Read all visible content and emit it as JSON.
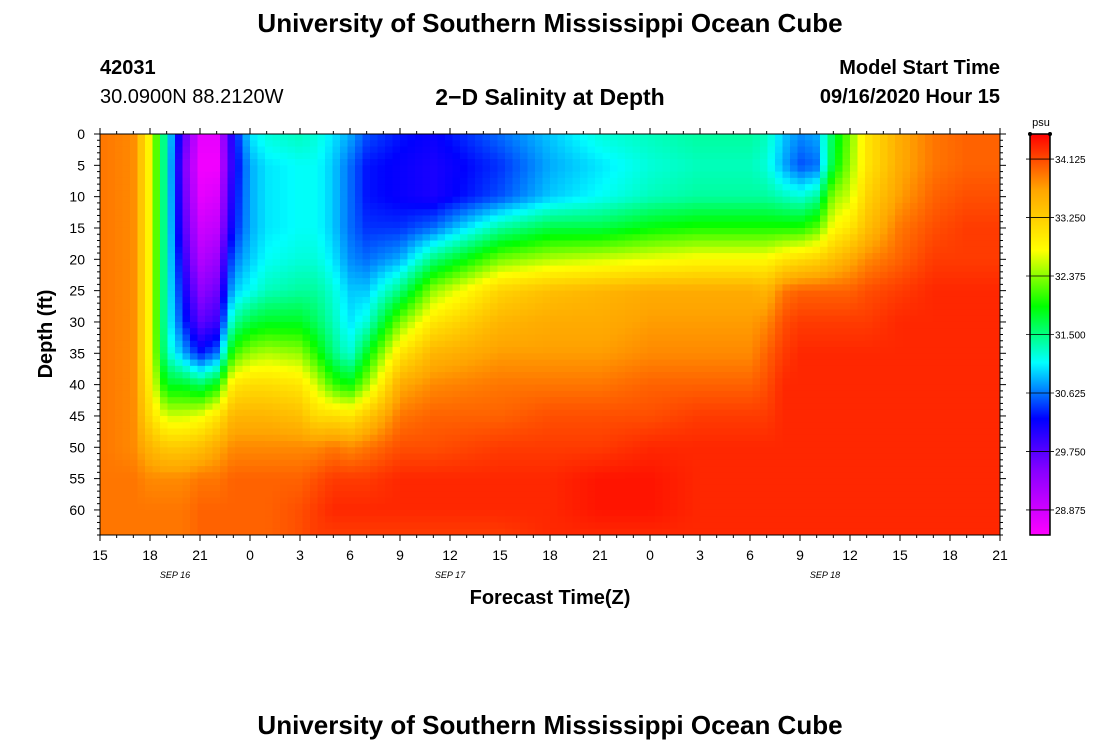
{
  "page": {
    "title_top": "University of Southern Mississippi Ocean Cube",
    "title_bottom": "University of Southern Mississippi Ocean Cube",
    "station_id": "42031",
    "location": "30.0900N 88.2120W",
    "plot_title": "2−D Salinity at Depth",
    "model_start_label": "Model Start Time",
    "model_start_value": "09/16/2020 Hour 15"
  },
  "chart_data": {
    "type": "heatmap",
    "title": "2−D Salinity at Depth",
    "xlabel": "Forecast Time(Z)",
    "ylabel": "Depth (ft)",
    "x_tick_labels": [
      "15",
      "18",
      "21",
      "0",
      "3",
      "6",
      "9",
      "12",
      "15",
      "18",
      "21",
      "0",
      "3",
      "6",
      "9",
      "12",
      "15",
      "18",
      "21"
    ],
    "x_range_hours": [
      0,
      54
    ],
    "date_labels": [
      {
        "text": "SEP 16",
        "hour": 4.5
      },
      {
        "text": "SEP 17",
        "hour": 21
      },
      {
        "text": "SEP 18",
        "hour": 43.5
      }
    ],
    "y_tick_labels": [
      "0",
      "5",
      "10",
      "15",
      "20",
      "25",
      "30",
      "35",
      "40",
      "45",
      "50",
      "55",
      "60"
    ],
    "y_range_ft": [
      0,
      64
    ],
    "colorbar": {
      "unit": "psu",
      "min": 28.5,
      "max": 34.5,
      "tick_values": [
        28.875,
        29.75,
        30.625,
        31.5,
        32.375,
        33.25,
        34.125
      ],
      "tick_labels": [
        "28.875",
        "29.750",
        "30.625",
        "31.500",
        "32.375",
        "33.250",
        "34.125"
      ]
    },
    "depths_ft": [
      0,
      5,
      10,
      15,
      20,
      25,
      30,
      35,
      40,
      45,
      50,
      55,
      60,
      64
    ],
    "hours": [
      0,
      2,
      3,
      4,
      5,
      6,
      7,
      8,
      9,
      10,
      12,
      13,
      14,
      15,
      16,
      18,
      20,
      24,
      27,
      30,
      33,
      36,
      39,
      40,
      41,
      42,
      43,
      44,
      45,
      46,
      48,
      50,
      52,
      54
    ],
    "salinity_psu": [
      [
        33.9,
        33.9,
        33.9,
        33.9,
        33.9,
        33.9,
        33.9,
        33.9,
        33.9,
        33.9,
        33.9,
        33.9,
        33.9,
        33.9
      ],
      [
        33.8,
        33.8,
        33.8,
        33.8,
        33.8,
        33.8,
        33.8,
        33.8,
        33.8,
        33.8,
        33.8,
        33.9,
        33.9,
        33.9
      ],
      [
        32.8,
        32.8,
        32.8,
        32.8,
        32.8,
        32.8,
        32.8,
        32.8,
        32.9,
        33.1,
        33.5,
        33.8,
        33.9,
        33.9
      ],
      [
        31.2,
        31.2,
        31.2,
        31.2,
        31.2,
        31.2,
        31.2,
        31.3,
        31.8,
        32.6,
        33.3,
        33.8,
        33.9,
        33.9
      ],
      [
        29.8,
        29.6,
        29.7,
        29.8,
        30.0,
        30.2,
        30.4,
        30.8,
        31.8,
        32.6,
        33.3,
        33.8,
        33.9,
        33.9
      ],
      [
        28.7,
        28.6,
        28.7,
        28.9,
        29.1,
        29.4,
        29.7,
        30.3,
        31.6,
        32.7,
        33.4,
        33.9,
        34.0,
        34.0
      ],
      [
        28.7,
        28.6,
        28.8,
        29.0,
        29.3,
        29.6,
        29.9,
        30.6,
        31.9,
        33.0,
        33.6,
        33.9,
        34.0,
        34.0
      ],
      [
        30.2,
        30.1,
        30.2,
        30.3,
        30.6,
        30.9,
        31.4,
        32.1,
        33.0,
        33.5,
        33.8,
        34.0,
        34.0,
        34.0
      ],
      [
        31.0,
        30.8,
        30.8,
        30.8,
        30.9,
        31.1,
        31.7,
        32.4,
        33.1,
        33.5,
        33.8,
        34.0,
        34.0,
        34.0
      ],
      [
        31.2,
        31.0,
        31.0,
        31.0,
        31.1,
        31.3,
        31.8,
        32.5,
        33.1,
        33.5,
        33.8,
        34.0,
        34.0,
        34.0
      ],
      [
        31.3,
        31.1,
        31.1,
        31.1,
        31.2,
        31.4,
        31.8,
        32.4,
        33.0,
        33.4,
        33.8,
        34.0,
        34.1,
        34.1
      ],
      [
        31.2,
        31.1,
        31.1,
        31.1,
        31.2,
        31.4,
        31.6,
        32.0,
        32.6,
        33.1,
        33.8,
        34.1,
        34.2,
        34.2
      ],
      [
        31.0,
        30.9,
        30.9,
        30.9,
        31.0,
        31.2,
        31.3,
        31.5,
        32.1,
        33.1,
        33.9,
        34.2,
        34.3,
        34.2
      ],
      [
        30.8,
        30.6,
        30.6,
        30.6,
        30.7,
        30.9,
        31.0,
        31.2,
        31.9,
        33.0,
        33.8,
        34.2,
        34.3,
        34.2
      ],
      [
        30.5,
        30.3,
        30.3,
        30.4,
        30.6,
        30.9,
        31.2,
        31.8,
        32.4,
        33.3,
        33.9,
        34.2,
        34.3,
        34.2
      ],
      [
        30.3,
        30.2,
        30.2,
        30.4,
        30.8,
        31.5,
        32.3,
        33.0,
        33.6,
        33.9,
        34.1,
        34.3,
        34.3,
        34.2
      ],
      [
        30.2,
        30.1,
        30.1,
        30.6,
        31.5,
        32.4,
        33.0,
        33.5,
        33.8,
        34.0,
        34.1,
        34.3,
        34.3,
        34.2
      ],
      [
        30.6,
        30.4,
        30.5,
        31.4,
        32.3,
        33.2,
        33.5,
        33.7,
        33.9,
        34.0,
        34.2,
        34.3,
        34.3,
        34.2
      ],
      [
        30.9,
        30.8,
        30.9,
        31.7,
        32.5,
        33.4,
        33.6,
        33.7,
        33.9,
        34.1,
        34.2,
        34.3,
        34.3,
        34.3
      ],
      [
        31.2,
        31.0,
        31.1,
        31.7,
        32.6,
        33.5,
        33.6,
        33.7,
        33.9,
        34.1,
        34.2,
        34.4,
        34.4,
        34.3
      ],
      [
        31.3,
        31.2,
        31.3,
        31.9,
        32.7,
        33.6,
        33.7,
        33.8,
        34.0,
        34.1,
        34.3,
        34.4,
        34.4,
        34.3
      ],
      [
        31.4,
        31.3,
        31.4,
        32.0,
        32.8,
        33.6,
        33.7,
        33.8,
        34.0,
        34.2,
        34.3,
        34.3,
        34.3,
        34.3
      ],
      [
        31.4,
        31.3,
        31.4,
        32.0,
        32.8,
        33.6,
        33.7,
        33.8,
        34.0,
        34.2,
        34.3,
        34.3,
        34.3,
        34.3
      ],
      [
        31.3,
        31.2,
        31.4,
        32.0,
        32.8,
        33.5,
        33.8,
        34.0,
        34.1,
        34.2,
        34.3,
        34.3,
        34.3,
        34.3
      ],
      [
        30.9,
        30.8,
        31.3,
        32.0,
        33.0,
        33.9,
        34.1,
        34.2,
        34.3,
        34.3,
        34.3,
        34.3,
        34.3,
        34.3
      ],
      [
        30.7,
        30.5,
        31.2,
        32.0,
        33.1,
        34.0,
        34.2,
        34.3,
        34.3,
        34.3,
        34.3,
        34.3,
        34.3,
        34.3
      ],
      [
        30.8,
        30.6,
        31.4,
        32.2,
        33.2,
        34.0,
        34.2,
        34.3,
        34.3,
        34.3,
        34.3,
        34.3,
        34.3,
        34.3
      ],
      [
        31.7,
        31.8,
        32.4,
        32.8,
        33.4,
        34.0,
        34.2,
        34.3,
        34.3,
        34.3,
        34.3,
        34.3,
        34.3,
        34.3
      ],
      [
        32.3,
        32.4,
        32.6,
        33.0,
        33.6,
        34.0,
        34.2,
        34.3,
        34.3,
        34.3,
        34.3,
        34.3,
        34.3,
        34.3
      ],
      [
        33.0,
        33.0,
        33.2,
        33.4,
        33.8,
        34.1,
        34.2,
        34.3,
        34.3,
        34.3,
        34.3,
        34.3,
        34.3,
        34.3
      ],
      [
        33.6,
        33.6,
        33.7,
        33.9,
        34.0,
        34.2,
        34.3,
        34.3,
        34.3,
        34.3,
        34.3,
        34.3,
        34.3,
        34.3
      ],
      [
        33.9,
        33.9,
        34.0,
        34.1,
        34.2,
        34.3,
        34.3,
        34.3,
        34.3,
        34.3,
        34.3,
        34.3,
        34.3,
        34.3
      ],
      [
        34.0,
        34.0,
        34.1,
        34.2,
        34.2,
        34.3,
        34.3,
        34.3,
        34.3,
        34.3,
        34.3,
        34.3,
        34.3,
        34.3
      ],
      [
        34.0,
        34.0,
        34.1,
        34.2,
        34.2,
        34.3,
        34.3,
        34.3,
        34.3,
        34.3,
        34.3,
        34.3,
        34.3,
        34.3
      ]
    ]
  }
}
